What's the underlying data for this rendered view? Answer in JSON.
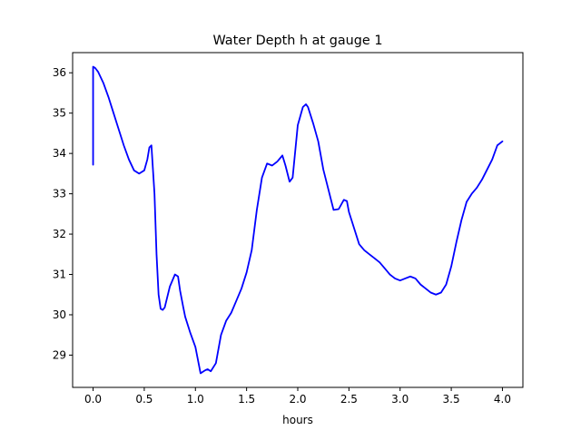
{
  "chart_data": {
    "type": "line",
    "title": "Water Depth h at gauge 1",
    "xlabel": "hours",
    "ylabel": "",
    "xlim": [
      -0.2,
      4.2
    ],
    "ylim": [
      28.2,
      36.5
    ],
    "xticks": [
      0.0,
      0.5,
      1.0,
      1.5,
      2.0,
      2.5,
      3.0,
      3.5,
      4.0
    ],
    "xtick_labels": [
      "0.0",
      "0.5",
      "1.0",
      "1.5",
      "2.0",
      "2.5",
      "3.0",
      "3.5",
      "4.0"
    ],
    "yticks": [
      29,
      30,
      31,
      32,
      33,
      34,
      35,
      36
    ],
    "ytick_labels": [
      "29",
      "30",
      "31",
      "32",
      "33",
      "34",
      "35",
      "36"
    ],
    "grid": false,
    "series": [
      {
        "color": "#0000ff",
        "x": [
          0.0,
          0.0,
          0.02,
          0.05,
          0.1,
          0.15,
          0.2,
          0.25,
          0.3,
          0.35,
          0.4,
          0.45,
          0.5,
          0.53,
          0.55,
          0.57,
          0.6,
          0.62,
          0.64,
          0.66,
          0.68,
          0.7,
          0.75,
          0.8,
          0.83,
          0.85,
          0.88,
          0.9,
          0.95,
          1.0,
          1.05,
          1.08,
          1.1,
          1.12,
          1.15,
          1.2,
          1.25,
          1.3,
          1.35,
          1.4,
          1.45,
          1.5,
          1.55,
          1.6,
          1.65,
          1.7,
          1.75,
          1.8,
          1.85,
          1.88,
          1.92,
          1.95,
          2.0,
          2.05,
          2.08,
          2.1,
          2.15,
          2.2,
          2.25,
          2.3,
          2.35,
          2.4,
          2.45,
          2.48,
          2.5,
          2.55,
          2.6,
          2.65,
          2.7,
          2.75,
          2.8,
          2.85,
          2.9,
          2.95,
          3.0,
          3.05,
          3.1,
          3.15,
          3.2,
          3.25,
          3.3,
          3.35,
          3.4,
          3.45,
          3.5,
          3.55,
          3.6,
          3.65,
          3.7,
          3.75,
          3.8,
          3.85,
          3.9,
          3.95,
          4.0
        ],
        "y": [
          33.72,
          36.15,
          36.12,
          36.02,
          35.75,
          35.4,
          35.0,
          34.6,
          34.2,
          33.85,
          33.58,
          33.5,
          33.58,
          33.85,
          34.15,
          34.2,
          33.0,
          31.5,
          30.5,
          30.15,
          30.12,
          30.18,
          30.7,
          31.0,
          30.95,
          30.6,
          30.2,
          29.95,
          29.55,
          29.2,
          28.55,
          28.6,
          28.63,
          28.65,
          28.6,
          28.8,
          29.5,
          29.85,
          30.05,
          30.35,
          30.65,
          31.05,
          31.6,
          32.6,
          33.4,
          33.75,
          33.7,
          33.8,
          33.95,
          33.7,
          33.3,
          33.4,
          34.7,
          35.15,
          35.22,
          35.15,
          34.75,
          34.3,
          33.6,
          33.1,
          32.6,
          32.62,
          32.85,
          32.82,
          32.55,
          32.15,
          31.75,
          31.6,
          31.5,
          31.4,
          31.3,
          31.15,
          31.0,
          30.9,
          30.85,
          30.9,
          30.95,
          30.9,
          30.75,
          30.65,
          30.55,
          30.5,
          30.55,
          30.75,
          31.2,
          31.8,
          32.35,
          32.8,
          33.0,
          33.15,
          33.35,
          33.6,
          33.85,
          34.2,
          34.3
        ]
      }
    ]
  }
}
